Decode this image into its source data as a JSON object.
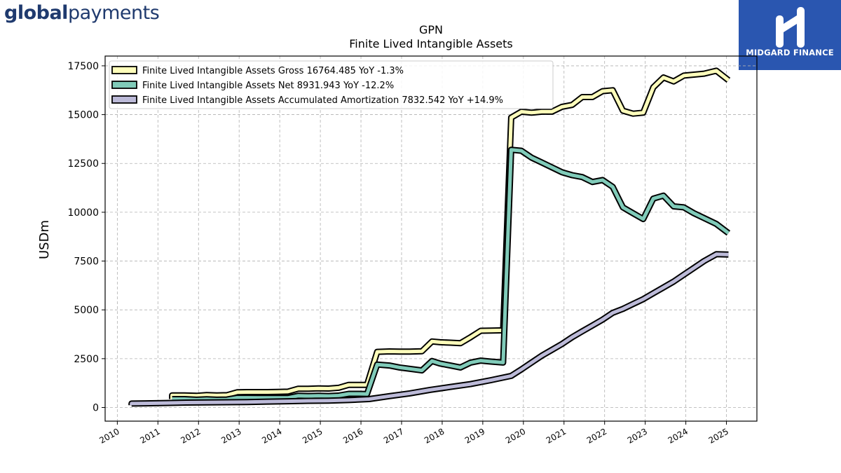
{
  "header": {
    "logo_bold": "global",
    "logo_light": "payments",
    "badge_text": "MIDGARD FINANCE"
  },
  "chart_data": {
    "type": "line",
    "title": "GPN",
    "subtitle": "Finite Lived Intangible Assets",
    "ylabel": "USDm",
    "xlabel": "",
    "xlim": [
      2009.7,
      2025.75
    ],
    "ylim": [
      -700,
      18000
    ],
    "yticks": [
      0,
      2500,
      5000,
      7500,
      10000,
      12500,
      15000,
      17500
    ],
    "xticks": [
      "2010",
      "2011",
      "2012",
      "2013",
      "2014",
      "2015",
      "2016",
      "2017",
      "2018",
      "2019",
      "2020",
      "2021",
      "2022",
      "2023",
      "2024",
      "2025"
    ],
    "grid": true,
    "legend_position": "top-left",
    "series": [
      {
        "name": "Finite Lived Intangible Assets Gross",
        "legend": "Finite Lived Intangible Assets Gross  16764.485 YoY -1.3%",
        "color": "#ffffbb",
        "points": [
          [
            2011.35,
            430
          ],
          [
            2011.35,
            620
          ],
          [
            2011.65,
            620
          ],
          [
            2011.95,
            600
          ],
          [
            2012.2,
            640
          ],
          [
            2012.45,
            620
          ],
          [
            2012.7,
            630
          ],
          [
            2012.95,
            780
          ],
          [
            2013.2,
            790
          ],
          [
            2013.45,
            790
          ],
          [
            2013.7,
            790
          ],
          [
            2013.95,
            800
          ],
          [
            2014.2,
            810
          ],
          [
            2014.45,
            960
          ],
          [
            2014.7,
            960
          ],
          [
            2014.95,
            980
          ],
          [
            2015.2,
            970
          ],
          [
            2015.45,
            1010
          ],
          [
            2015.7,
            1160
          ],
          [
            2015.95,
            1160
          ],
          [
            2016.15,
            1160
          ],
          [
            2016.4,
            2850
          ],
          [
            2016.7,
            2870
          ],
          [
            2016.95,
            2860
          ],
          [
            2017.2,
            2860
          ],
          [
            2017.5,
            2880
          ],
          [
            2017.75,
            3380
          ],
          [
            2017.95,
            3340
          ],
          [
            2018.2,
            3320
          ],
          [
            2018.45,
            3290
          ],
          [
            2018.7,
            3600
          ],
          [
            2018.95,
            3930
          ],
          [
            2019.2,
            3940
          ],
          [
            2019.5,
            3950
          ],
          [
            2019.7,
            14850
          ],
          [
            2019.95,
            15150
          ],
          [
            2020.2,
            15100
          ],
          [
            2020.45,
            15150
          ],
          [
            2020.7,
            15150
          ],
          [
            2020.95,
            15400
          ],
          [
            2021.2,
            15500
          ],
          [
            2021.45,
            15900
          ],
          [
            2021.7,
            15900
          ],
          [
            2021.95,
            16200
          ],
          [
            2022.2,
            16250
          ],
          [
            2022.45,
            15200
          ],
          [
            2022.7,
            15050
          ],
          [
            2022.95,
            15100
          ],
          [
            2023.2,
            16400
          ],
          [
            2023.45,
            16900
          ],
          [
            2023.7,
            16700
          ],
          [
            2023.95,
            17000
          ],
          [
            2024.2,
            17050
          ],
          [
            2024.45,
            17100
          ],
          [
            2024.75,
            17250
          ],
          [
            2025.05,
            16764
          ]
        ]
      },
      {
        "name": "Finite Lived Intangible Assets Net",
        "legend": "Finite Lived Intangible Assets Net  8931.943 YoY -12.2%",
        "color": "#80cbb9",
        "points": [
          [
            2011.35,
            430
          ],
          [
            2011.65,
            430
          ],
          [
            2011.95,
            400
          ],
          [
            2012.2,
            420
          ],
          [
            2012.45,
            400
          ],
          [
            2012.7,
            410
          ],
          [
            2012.95,
            500
          ],
          [
            2013.2,
            500
          ],
          [
            2013.45,
            490
          ],
          [
            2013.7,
            490
          ],
          [
            2013.95,
            490
          ],
          [
            2014.2,
            490
          ],
          [
            2014.45,
            600
          ],
          [
            2014.7,
            590
          ],
          [
            2014.95,
            600
          ],
          [
            2015.2,
            590
          ],
          [
            2015.45,
            610
          ],
          [
            2015.7,
            700
          ],
          [
            2015.95,
            700
          ],
          [
            2016.15,
            690
          ],
          [
            2016.4,
            2200
          ],
          [
            2016.7,
            2150
          ],
          [
            2016.95,
            2050
          ],
          [
            2017.2,
            1980
          ],
          [
            2017.5,
            1900
          ],
          [
            2017.75,
            2380
          ],
          [
            2017.95,
            2250
          ],
          [
            2018.2,
            2150
          ],
          [
            2018.45,
            2050
          ],
          [
            2018.7,
            2300
          ],
          [
            2018.95,
            2400
          ],
          [
            2019.2,
            2350
          ],
          [
            2019.5,
            2300
          ],
          [
            2019.7,
            13200
          ],
          [
            2019.95,
            13150
          ],
          [
            2020.2,
            12800
          ],
          [
            2020.45,
            12550
          ],
          [
            2020.7,
            12300
          ],
          [
            2020.95,
            12050
          ],
          [
            2021.2,
            11900
          ],
          [
            2021.45,
            11800
          ],
          [
            2021.7,
            11550
          ],
          [
            2021.95,
            11650
          ],
          [
            2022.2,
            11300
          ],
          [
            2022.45,
            10250
          ],
          [
            2022.7,
            9950
          ],
          [
            2022.95,
            9650
          ],
          [
            2023.2,
            10700
          ],
          [
            2023.45,
            10850
          ],
          [
            2023.7,
            10300
          ],
          [
            2023.95,
            10250
          ],
          [
            2024.2,
            9950
          ],
          [
            2024.45,
            9700
          ],
          [
            2024.75,
            9400
          ],
          [
            2025.05,
            8932
          ]
        ]
      },
      {
        "name": "Finite Lived Intangible Assets Accumulated Amortization",
        "legend": "Finite Lived Intangible Assets Accumulated Amortization  7832.542 YoY +14.9%",
        "color": "#bcbad8",
        "points": [
          [
            2010.35,
            120
          ],
          [
            2010.35,
            200
          ],
          [
            2010.7,
            210
          ],
          [
            2011.2,
            230
          ],
          [
            2011.7,
            250
          ],
          [
            2012.2,
            260
          ],
          [
            2012.7,
            270
          ],
          [
            2013.2,
            280
          ],
          [
            2013.7,
            300
          ],
          [
            2014.2,
            320
          ],
          [
            2014.7,
            340
          ],
          [
            2015.2,
            350
          ],
          [
            2015.7,
            380
          ],
          [
            2016.2,
            430
          ],
          [
            2016.7,
            580
          ],
          [
            2017.2,
            720
          ],
          [
            2017.7,
            900
          ],
          [
            2018.2,
            1050
          ],
          [
            2018.7,
            1200
          ],
          [
            2019.2,
            1400
          ],
          [
            2019.7,
            1620
          ],
          [
            2019.95,
            1950
          ],
          [
            2020.2,
            2300
          ],
          [
            2020.45,
            2650
          ],
          [
            2020.7,
            2950
          ],
          [
            2020.95,
            3250
          ],
          [
            2021.2,
            3600
          ],
          [
            2021.45,
            3900
          ],
          [
            2021.7,
            4200
          ],
          [
            2021.95,
            4500
          ],
          [
            2022.2,
            4850
          ],
          [
            2022.45,
            5050
          ],
          [
            2022.7,
            5300
          ],
          [
            2022.95,
            5550
          ],
          [
            2023.2,
            5850
          ],
          [
            2023.45,
            6150
          ],
          [
            2023.7,
            6450
          ],
          [
            2023.95,
            6800
          ],
          [
            2024.2,
            7150
          ],
          [
            2024.45,
            7500
          ],
          [
            2024.75,
            7850
          ],
          [
            2025.05,
            7833
          ]
        ]
      }
    ]
  }
}
